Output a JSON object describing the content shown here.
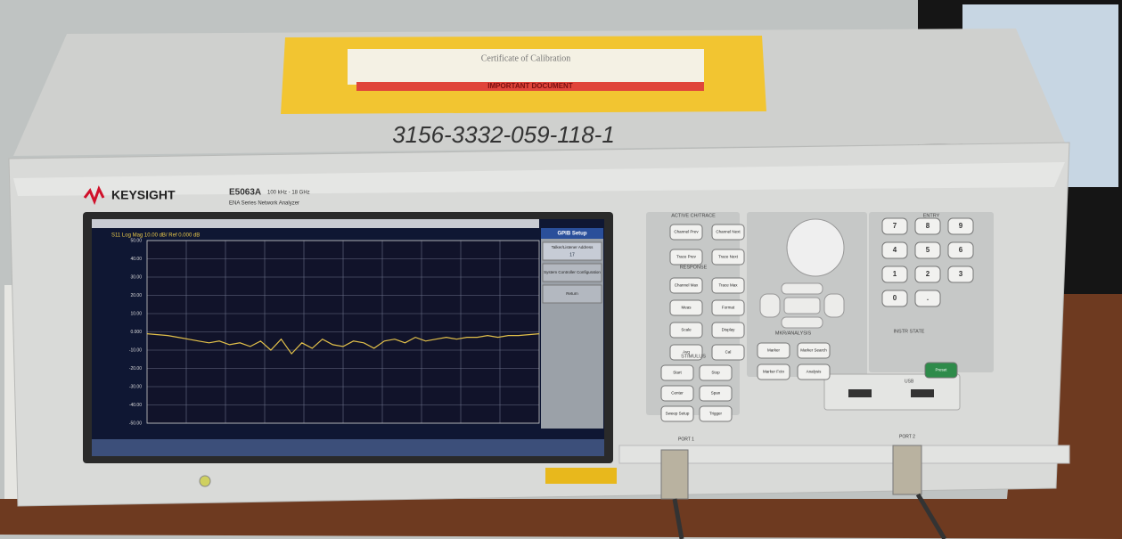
{
  "label": {
    "handwritten": "3156-3332-059-118-1",
    "envelope_title": "Certificate of Calibration",
    "envelope_notice": "IMPORTANT DOCUMENT"
  },
  "brand": {
    "name": "KEYSIGHT",
    "model": "E5063A",
    "range": "100 kHz - 18 GHz",
    "series": "ENA Series Network Analyzer"
  },
  "screen": {
    "trace_label": "S11 Log Mag 10.00 dB/ Ref 0.000 dB",
    "ylim": [
      -50,
      50
    ],
    "yticks": [
      {
        "value": 50,
        "label": "50.00"
      },
      {
        "value": 40,
        "label": "40.00"
      },
      {
        "value": 30,
        "label": "30.00"
      },
      {
        "value": 20,
        "label": "20.00"
      },
      {
        "value": 10,
        "label": "10.00"
      },
      {
        "value": 0,
        "label": "0.000"
      },
      {
        "value": -10,
        "label": "-10.00"
      },
      {
        "value": -20,
        "label": "-20.00"
      },
      {
        "value": -30,
        "label": "-30.00"
      },
      {
        "value": -40,
        "label": "-40.00"
      },
      {
        "value": -50,
        "label": "-50.00"
      }
    ],
    "values": [
      -1,
      -1.5,
      -2,
      -3,
      -4,
      -5,
      -6,
      -5,
      -7,
      -6,
      -8,
      -5,
      -10,
      -4,
      -12,
      -6,
      -9,
      -4,
      -7,
      -8,
      -5,
      -6,
      -9,
      -5,
      -4,
      -6,
      -3,
      -5,
      -4,
      -3,
      -4,
      -3,
      -3,
      -2,
      -3,
      -2,
      -2,
      -1.5,
      -1
    ],
    "softkeys": {
      "title": "GPIB Setup",
      "items": [
        "Talker/Listener Address",
        "System Controller Configuration",
        "Return"
      ],
      "address": "17"
    }
  },
  "panel": {
    "groups": [
      {
        "title": "ACTIVE CH/TRACE",
        "keys": [
          "Channel Prev",
          "Channel Next",
          "Trace Prev",
          "Trace Next"
        ]
      },
      {
        "title": "RESPONSE",
        "keys": [
          "Channel Max",
          "Trace Max",
          "Meas",
          "Format",
          "Scale",
          "Display",
          "Avg",
          "Cal"
        ]
      },
      {
        "title": "STIMULUS",
        "keys": [
          "Start",
          "Stop",
          "Center",
          "Span",
          "Sweep Setup",
          "Trigger"
        ]
      },
      {
        "title": "MKR/ANALYSIS",
        "keys": [
          "Marker",
          "Marker Search",
          "Marker Fctn",
          "Analysis"
        ]
      },
      {
        "title": "INSTR STATE",
        "keys": [
          "Preset"
        ]
      }
    ]
  },
  "keypad": {
    "title": "ENTRY",
    "keys": [
      "7",
      "8",
      "9",
      "4",
      "5",
      "6",
      "1",
      "2",
      "3",
      "0",
      "."
    ]
  },
  "ports": [
    "PORT 1",
    "PORT 2"
  ],
  "usb": "USB"
}
